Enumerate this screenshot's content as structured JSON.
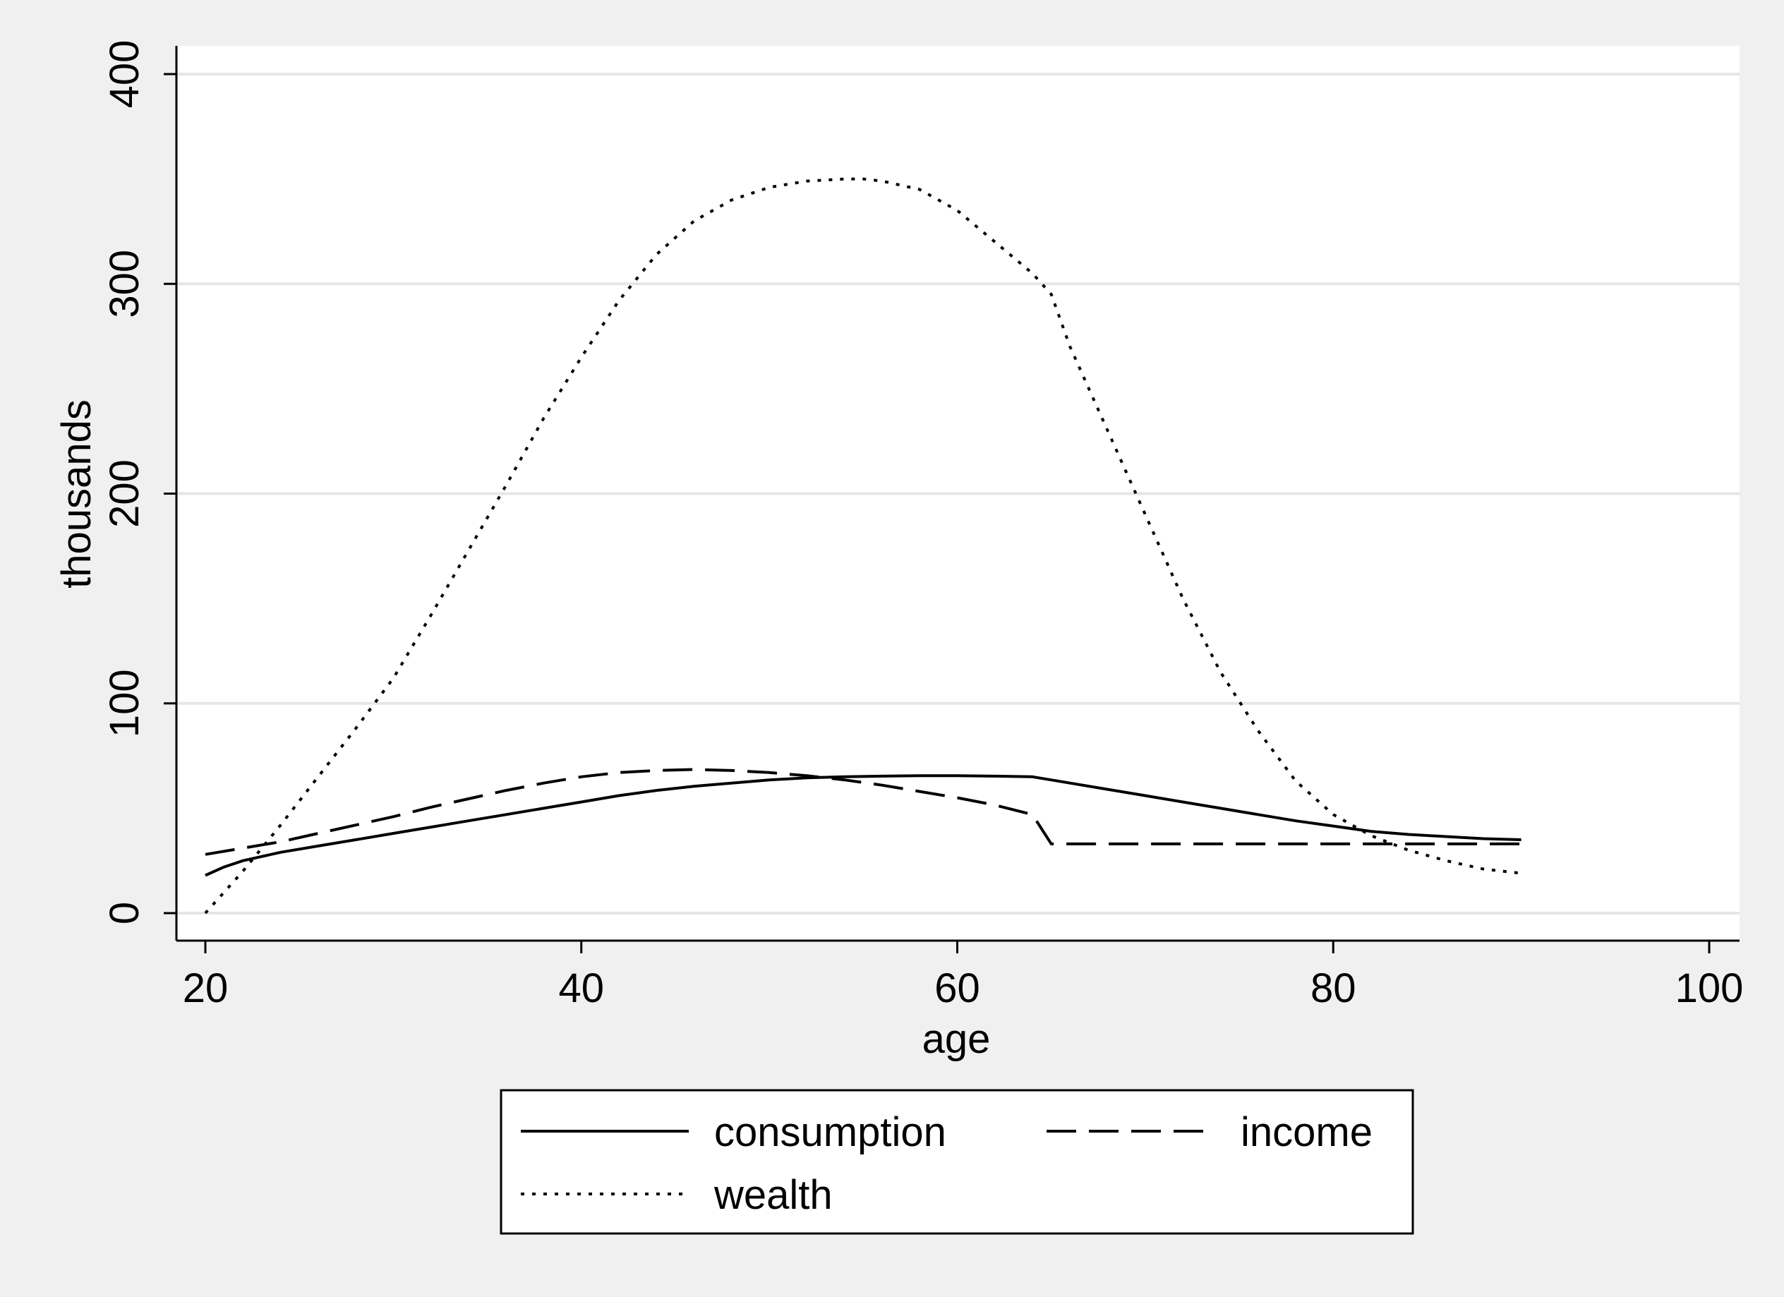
{
  "chart_data": {
    "type": "line",
    "title": "",
    "xlabel": "age",
    "ylabel": "thousands",
    "xlim": [
      20,
      100
    ],
    "ylim": [
      0,
      400
    ],
    "x_ticks": [
      20,
      40,
      60,
      80,
      100
    ],
    "y_ticks": [
      0,
      100,
      200,
      300,
      400
    ],
    "x_tick_labels": [
      "20",
      "40",
      "60",
      "80",
      "100"
    ],
    "y_tick_labels": [
      "0",
      "100",
      "200",
      "300",
      "400"
    ],
    "grid": "horizontal",
    "legend_position": "bottom",
    "colors": {
      "plot_background": "#ffffff",
      "figure_background": "#f0f0f0",
      "gridline": "#e6e6e6",
      "line": "#000000"
    },
    "series": [
      {
        "name": "consumption",
        "style": "solid",
        "x": [
          20,
          21,
          22,
          24,
          26,
          28,
          30,
          32,
          34,
          36,
          38,
          40,
          42,
          44,
          46,
          48,
          50,
          52,
          54,
          56,
          58,
          60,
          62,
          64,
          66,
          68,
          70,
          72,
          74,
          76,
          78,
          80,
          82,
          84,
          86,
          88,
          90
        ],
        "values": [
          18,
          22,
          25,
          29,
          32,
          35,
          38,
          41,
          44,
          47,
          50,
          53,
          56,
          58.5,
          60.5,
          62,
          63.5,
          64.5,
          65,
          65.3,
          65.5,
          65.5,
          65.3,
          65,
          62,
          59,
          56,
          53,
          50,
          47,
          44,
          41.5,
          39,
          37.5,
          36.5,
          35.5,
          35
        ]
      },
      {
        "name": "income",
        "style": "dashed",
        "x": [
          20,
          22,
          24,
          26,
          28,
          30,
          32,
          34,
          36,
          38,
          40,
          42,
          44,
          46,
          48,
          50,
          52,
          54,
          56,
          58,
          60,
          62,
          64,
          65,
          70,
          75,
          80,
          85,
          90
        ],
        "values": [
          28,
          31,
          34,
          38,
          42,
          46,
          50.5,
          54.5,
          58.5,
          62,
          65,
          67,
          68,
          68.5,
          68,
          67,
          65.5,
          63.5,
          61,
          58,
          55,
          51.5,
          47,
          33,
          33,
          33,
          33,
          33,
          33
        ]
      },
      {
        "name": "wealth",
        "style": "dotted",
        "x": [
          20,
          22,
          24,
          26,
          28,
          30,
          32,
          34,
          36,
          38,
          40,
          42,
          44,
          46,
          48,
          50,
          52,
          54,
          55,
          56,
          58,
          60,
          62,
          64,
          65,
          66,
          68,
          70,
          72,
          74,
          76,
          78,
          80,
          82,
          84,
          86,
          88,
          90
        ],
        "values": [
          0,
          20,
          42,
          65,
          88,
          112,
          142,
          173,
          204,
          236,
          265,
          292,
          314,
          330,
          340,
          346,
          349,
          350,
          350,
          349,
          345,
          335,
          320,
          305,
          295,
          270,
          230,
          190,
          150,
          115,
          87,
          63,
          47,
          37,
          30,
          25,
          21,
          19
        ]
      }
    ]
  }
}
